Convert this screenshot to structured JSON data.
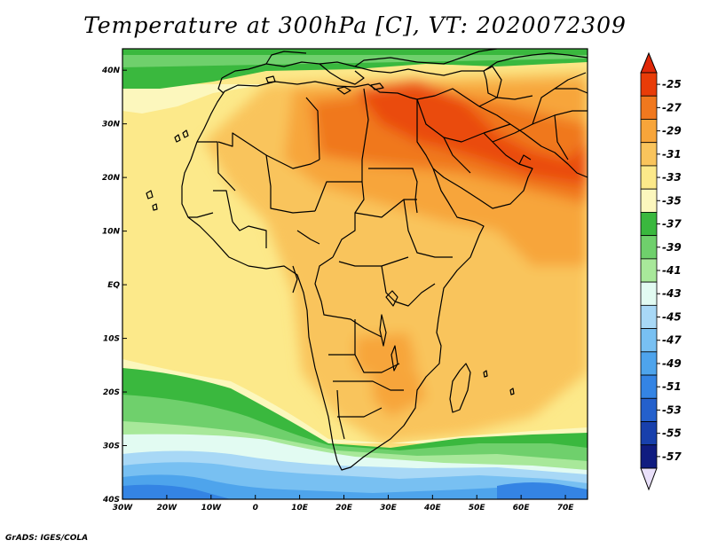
{
  "title": "Temperature at 300hPa [C], VT: 2020072309",
  "credit": "GrADS: IGES/COLA",
  "map": {
    "lat_labels": [
      "40N",
      "30N",
      "20N",
      "10N",
      "EQ",
      "10S",
      "20S",
      "30S",
      "40S"
    ],
    "lon_labels": [
      "30W",
      "20W",
      "10W",
      "0",
      "10E",
      "20E",
      "30E",
      "40E",
      "50E",
      "60E",
      "70E"
    ],
    "extent": {
      "lon_min": -30,
      "lon_max": 75,
      "lat_min": -40,
      "lat_max": 44
    }
  },
  "colorbar": {
    "labels": [
      "-25",
      "-27",
      "-29",
      "-31",
      "-33",
      "-35",
      "-37",
      "-39",
      "-41",
      "-43",
      "-45",
      "-47",
      "-49",
      "-51",
      "-53",
      "-55",
      "-57"
    ],
    "colors": [
      "#e83c08",
      "#f0781e",
      "#f7a53a",
      "#f9c45c",
      "#fce98a",
      "#fcf7bd",
      "#3ab83e",
      "#6fd06c",
      "#a8e89a",
      "#e2fbf2",
      "#a8d8f6",
      "#78c0f2",
      "#4ea4ec",
      "#3484e4",
      "#2460cc",
      "#1840ac",
      "#101c80"
    ],
    "top_cap": "#e02808",
    "bottom_cap": "#e9e0fa"
  }
}
